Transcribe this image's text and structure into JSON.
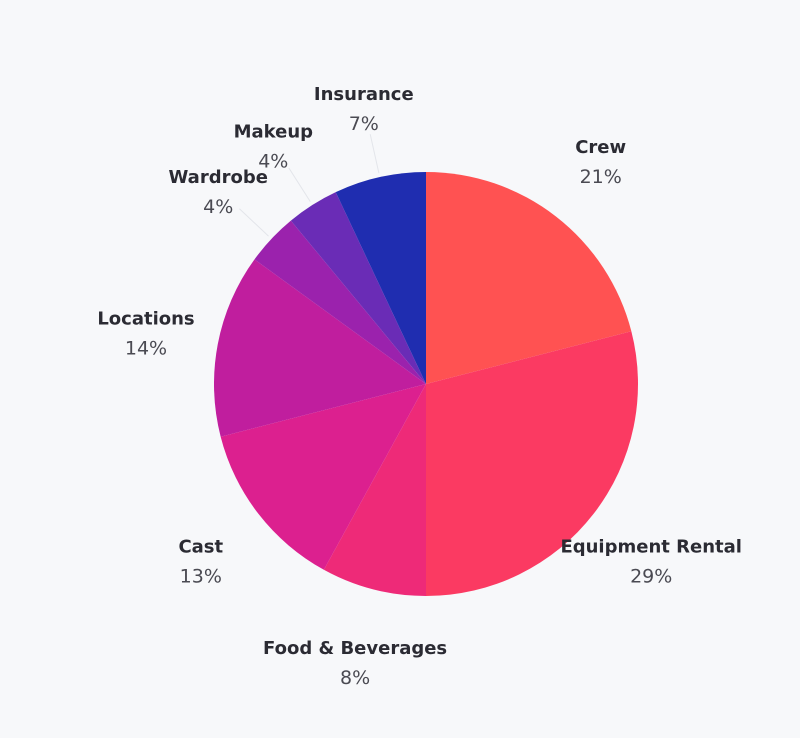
{
  "chart_data": {
    "type": "pie",
    "title": "",
    "start_angle_deg": 0,
    "direction": "clockwise",
    "slices": [
      {
        "label": "Crew",
        "percent_label": "21%",
        "value": 21,
        "color": "#ff5252"
      },
      {
        "label": "Equipment Rental",
        "percent_label": "29%",
        "value": 29,
        "color": "#fb3a62"
      },
      {
        "label": "Food & Beverages",
        "percent_label": "8%",
        "value": 8,
        "color": "#ee2a78"
      },
      {
        "label": "Cast",
        "percent_label": "13%",
        "value": 13,
        "color": "#dc208f"
      },
      {
        "label": "Locations",
        "percent_label": "14%",
        "value": 14,
        "color": "#c01e9e"
      },
      {
        "label": "Wardrobe",
        "percent_label": "4%",
        "value": 4,
        "color": "#9b22ad"
      },
      {
        "label": "Makeup",
        "percent_label": "4%",
        "value": 4,
        "color": "#6a2cb6"
      },
      {
        "label": "Insurance",
        "percent_label": "7%",
        "value": 7,
        "color": "#1f2db0"
      }
    ]
  }
}
